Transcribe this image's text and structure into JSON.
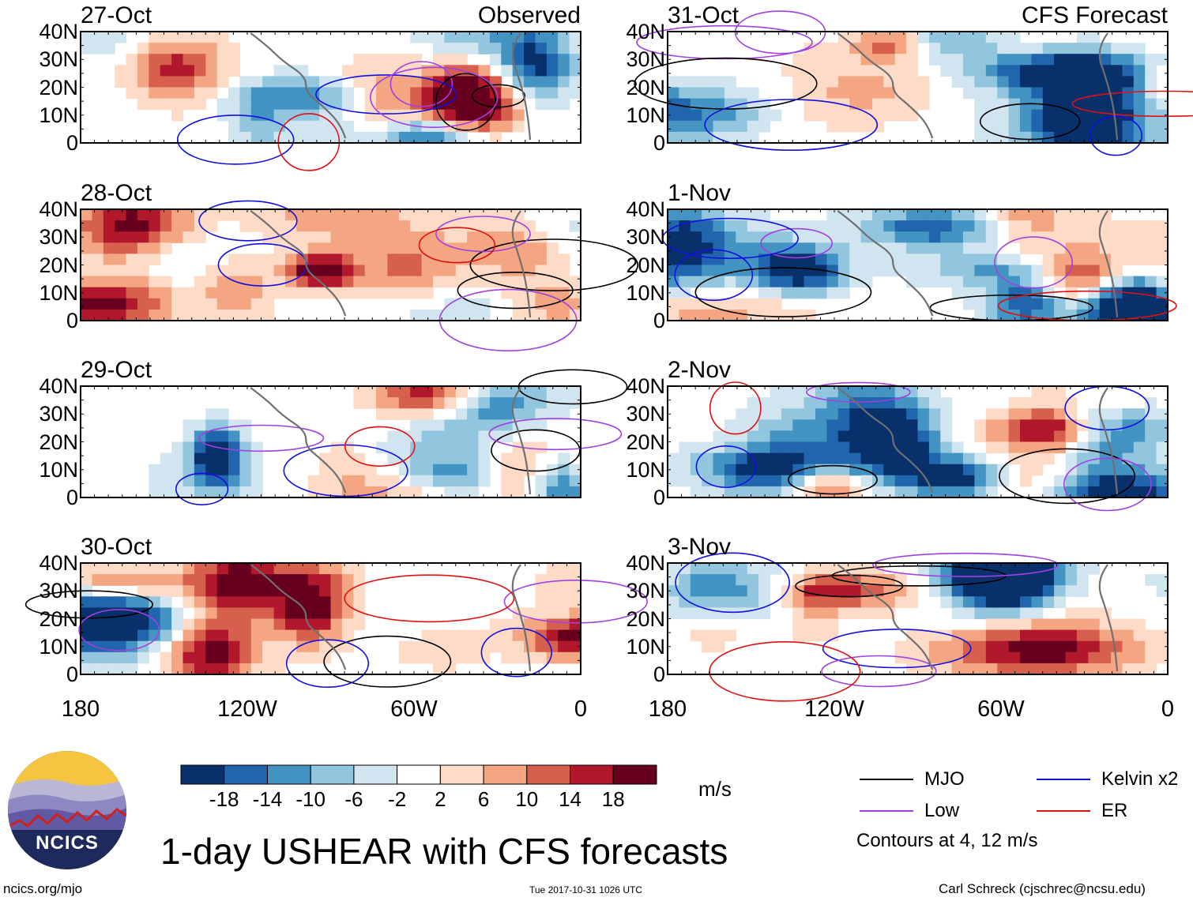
{
  "panels": [
    {
      "date": "27-Oct",
      "label": "Observed",
      "col": 0,
      "row": 0,
      "seed": 11
    },
    {
      "date": "28-Oct",
      "label": "",
      "col": 0,
      "row": 1,
      "seed": 23
    },
    {
      "date": "29-Oct",
      "label": "",
      "col": 0,
      "row": 2,
      "seed": 37
    },
    {
      "date": "30-Oct",
      "label": "",
      "col": 0,
      "row": 3,
      "seed": 41
    },
    {
      "date": "31-Oct",
      "label": "CFS Forecast",
      "col": 1,
      "row": 0,
      "seed": 53
    },
    {
      "date": "1-Nov",
      "label": "",
      "col": 1,
      "row": 1,
      "seed": 67
    },
    {
      "date": "2-Nov",
      "label": "",
      "col": 1,
      "row": 2,
      "seed": 79
    },
    {
      "date": "3-Nov",
      "label": "",
      "col": 1,
      "row": 3,
      "seed": 83
    }
  ],
  "chart_data": {
    "type": "heatmap",
    "title": "1-day USHEAR with CFS forecasts",
    "variable": "USHEAR",
    "units": "m/s",
    "x_axis": {
      "ticks": [
        "180",
        "120W",
        "60W",
        "0"
      ],
      "range_lon": [
        -180,
        0
      ]
    },
    "y_axis": {
      "ticks": [
        "40N",
        "30N",
        "20N",
        "10N",
        "0"
      ],
      "range_lat": [
        0,
        40
      ]
    },
    "colorbar": {
      "levels": [
        "-18",
        "-14",
        "-10",
        "-6",
        "-2",
        "2",
        "6",
        "10",
        "14",
        "18"
      ],
      "colors": [
        "#08306b",
        "#2166ac",
        "#4393c3",
        "#92c5de",
        "#d1e5f0",
        "#ffffff",
        "#fddbc7",
        "#f4a582",
        "#d6604d",
        "#b2182b",
        "#67001f"
      ]
    },
    "legend": [
      {
        "name": "MJO",
        "color": "#000000"
      },
      {
        "name": "Kelvin x2",
        "color": "#1010e0"
      },
      {
        "name": "Low",
        "color": "#a040e0"
      },
      {
        "name": "ER",
        "color": "#e01010"
      }
    ],
    "contour_note": "Contours at 4, 12 m/s"
  },
  "footer": {
    "site": "ncics.org/mjo",
    "timestamp": "Tue 2017-10-31 1026 UTC",
    "author": "Carl Schreck (cjschrec@ncsu.edu)",
    "logo_text": "NCICS"
  }
}
